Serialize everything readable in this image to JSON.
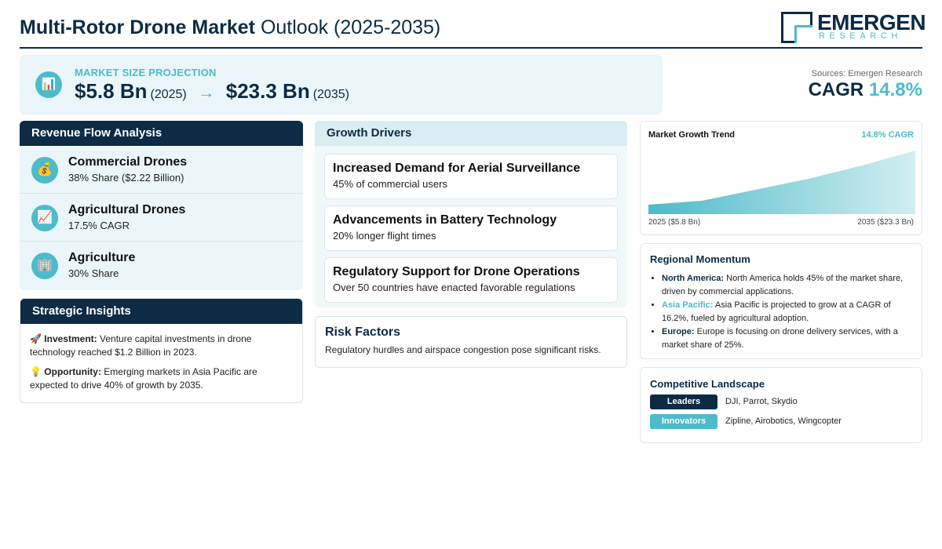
{
  "header": {
    "title_bold": "Multi-Rotor Drone Market",
    "title_rest": "Outlook (2025-2035)",
    "logo_name": "EMERGEN",
    "logo_sub": "RESEARCH"
  },
  "projection": {
    "icon": "bar-chart-icon",
    "label": "MARKET SIZE PROJECTION",
    "start_value": "$5.8 Bn",
    "start_year": "(2025)",
    "arrow": "→",
    "end_value": "$23.3 Bn",
    "end_year": "(2035)"
  },
  "summary": {
    "source": "Sources: Emergen Research",
    "cagr_label": "CAGR",
    "cagr_value": "14.8%"
  },
  "revenue_flow": {
    "title": "Revenue Flow Analysis",
    "items": [
      {
        "icon": "money-bag-icon",
        "glyph": "💰",
        "title": "Commercial Drones",
        "subtitle": "38% Share ($2.22 Billion)"
      },
      {
        "icon": "trend-chart-icon",
        "glyph": "📈",
        "title": "Agricultural Drones",
        "subtitle": "17.5% CAGR"
      },
      {
        "icon": "building-icon",
        "glyph": "🏢",
        "title": "Agriculture",
        "subtitle": "30% Share"
      }
    ]
  },
  "strategic_insights": {
    "title": "Strategic Insights",
    "items": [
      {
        "icon": "rocket-icon",
        "glyph": "🚀",
        "label": "Investment:",
        "text": "Venture capital investments in drone technology reached $1.2 Billion in 2023."
      },
      {
        "icon": "lightbulb-icon",
        "glyph": "💡",
        "label": "Opportunity:",
        "text": "Emerging markets in Asia Pacific are expected to drive 40% of growth by 2035."
      }
    ]
  },
  "growth_drivers": {
    "title": "Growth Drivers",
    "items": [
      {
        "title": "Increased Demand for Aerial Surveillance",
        "subtitle": "45% of commercial users"
      },
      {
        "title": "Advancements in Battery Technology",
        "subtitle": "20% longer flight times"
      },
      {
        "title": "Regulatory Support for Drone Operations",
        "subtitle": "Over 50 countries have enacted favorable regulations"
      }
    ]
  },
  "risk": {
    "title": "Risk Factors",
    "text": "Regulatory hurdles and airspace congestion pose significant risks."
  },
  "trend": {
    "title": "Market Growth Trend",
    "cagr": "14.8% CAGR",
    "start_label": "2025 ($5.8 Bn)",
    "end_label": "2035 ($23.3 Bn)",
    "color": "#4dbbc9"
  },
  "regional": {
    "title": "Regional Momentum",
    "items": [
      {
        "region": "North America:",
        "text": "North America holds 45% of the market share, driven by commercial applications."
      },
      {
        "region": "Asia Pacific:",
        "text": "Asia Pacific is projected to grow at a CAGR of 16.2%, fueled by agricultural adoption."
      },
      {
        "region": "Europe:",
        "text": "Europe is focusing on drone delivery services, with a market share of 25%."
      }
    ]
  },
  "competitive": {
    "title": "Competitive Landscape",
    "rows": [
      {
        "tag": "Leaders",
        "names": "DJI, Parrot, Skydio"
      },
      {
        "tag": "Innovators",
        "names": "Zipline, Airobotics, Wingcopter"
      }
    ]
  }
}
